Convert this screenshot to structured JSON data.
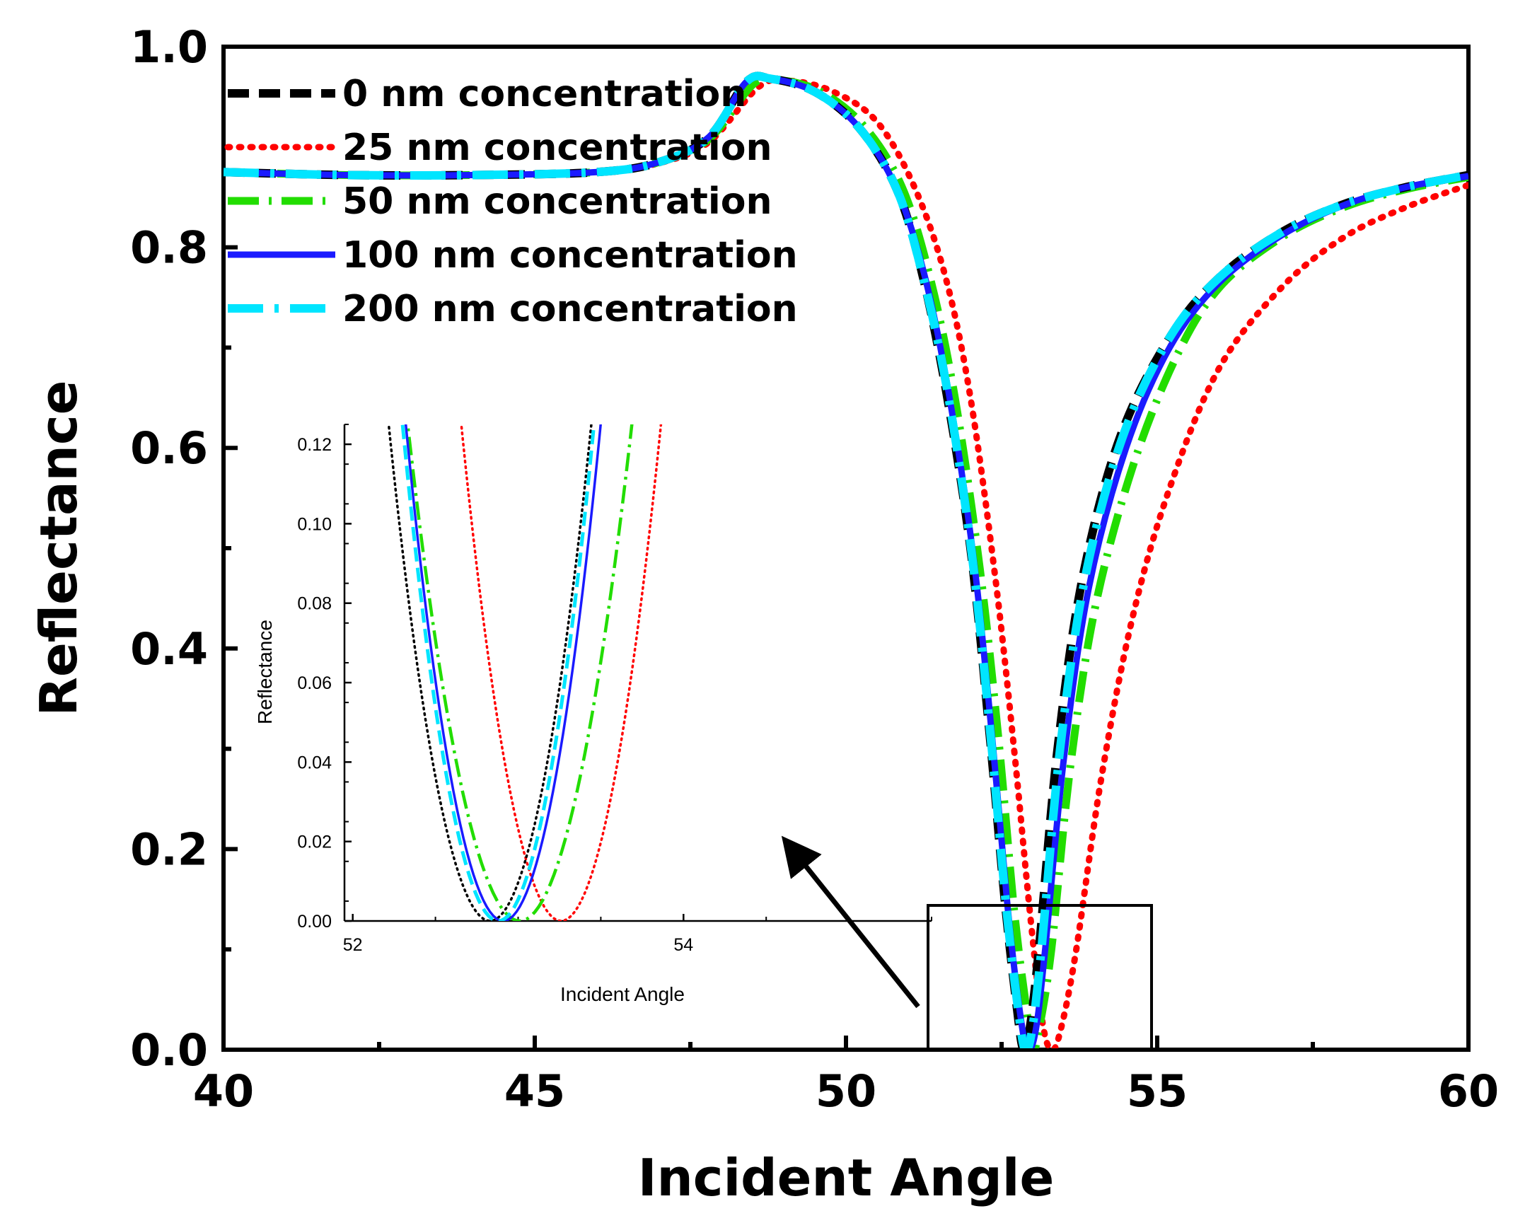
{
  "chart_data": [
    {
      "id": "main",
      "type": "line",
      "xlabel": "Incident Angle",
      "ylabel": "Reflectance",
      "xlim": [
        40,
        60
      ],
      "ylim": [
        0.0,
        1.0
      ],
      "xticks": [
        40,
        45,
        50,
        55,
        60
      ],
      "xtick_labels": [
        "40",
        "45",
        "50",
        "55",
        "60"
      ],
      "yticks": [
        0.0,
        0.2,
        0.4,
        0.6,
        0.8,
        1.0
      ],
      "ytick_labels": [
        "0.0",
        "0.2",
        "0.4",
        "0.6",
        "0.8",
        "1.0"
      ],
      "legend_position": "top-left",
      "grid": false,
      "series": [
        {
          "name": "0 nm concentration",
          "color": "#000000",
          "style": "dashed",
          "x": [
            40,
            42,
            44,
            46,
            47,
            47.8,
            48.4,
            48.8,
            49.5,
            50.2,
            50.8,
            51.2,
            51.6,
            52.0,
            52.3,
            52.55,
            52.75,
            52.85,
            52.95,
            53.1,
            53.4,
            53.8,
            54.4,
            55.2,
            56,
            57,
            58,
            59,
            60
          ],
          "y": [
            0.875,
            0.872,
            0.872,
            0.875,
            0.885,
            0.91,
            0.965,
            0.968,
            0.955,
            0.92,
            0.86,
            0.78,
            0.66,
            0.5,
            0.32,
            0.15,
            0.04,
            0.0,
            0.02,
            0.1,
            0.3,
            0.47,
            0.61,
            0.71,
            0.77,
            0.815,
            0.843,
            0.86,
            0.872
          ]
        },
        {
          "name": "25 nm concentration",
          "color": "#ff0000",
          "style": "dotted",
          "x": [
            40,
            42,
            44,
            46,
            47,
            47.8,
            48.6,
            49.1,
            49.8,
            50.5,
            51.1,
            51.6,
            52.0,
            52.4,
            52.7,
            52.95,
            53.15,
            53.3,
            53.45,
            53.7,
            54.1,
            54.6,
            55.2,
            56,
            57,
            58,
            59,
            60
          ],
          "y": [
            0.875,
            0.872,
            0.872,
            0.875,
            0.884,
            0.905,
            0.96,
            0.966,
            0.955,
            0.925,
            0.86,
            0.77,
            0.65,
            0.47,
            0.3,
            0.14,
            0.03,
            0.0,
            0.02,
            0.1,
            0.27,
            0.43,
            0.56,
            0.68,
            0.76,
            0.81,
            0.84,
            0.862
          ]
        },
        {
          "name": "50 nm concentration",
          "color": "#22dd00",
          "style": "dashdot",
          "x": [
            40,
            42,
            44,
            46,
            47,
            47.8,
            48.5,
            48.9,
            49.6,
            50.3,
            50.9,
            51.35,
            51.75,
            52.15,
            52.45,
            52.7,
            52.9,
            53.0,
            53.1,
            53.3,
            53.6,
            54.0,
            54.6,
            55.3,
            56,
            57,
            58,
            59,
            60
          ],
          "y": [
            0.875,
            0.872,
            0.872,
            0.875,
            0.885,
            0.908,
            0.962,
            0.967,
            0.955,
            0.92,
            0.86,
            0.77,
            0.65,
            0.48,
            0.31,
            0.14,
            0.04,
            0.0,
            0.02,
            0.1,
            0.28,
            0.44,
            0.58,
            0.69,
            0.76,
            0.81,
            0.84,
            0.858,
            0.87
          ]
        },
        {
          "name": "100 nm concentration",
          "color": "#1a1aff",
          "style": "solid",
          "x": [
            40,
            42,
            44,
            46,
            47,
            47.8,
            48.4,
            48.8,
            49.5,
            50.2,
            50.8,
            51.25,
            51.65,
            52.05,
            52.35,
            52.6,
            52.8,
            52.92,
            53.05,
            53.2,
            53.5,
            53.9,
            54.5,
            55.2,
            56,
            57,
            58,
            59,
            60
          ],
          "y": [
            0.875,
            0.872,
            0.872,
            0.875,
            0.885,
            0.91,
            0.965,
            0.968,
            0.955,
            0.92,
            0.86,
            0.775,
            0.655,
            0.49,
            0.31,
            0.14,
            0.035,
            0.0,
            0.02,
            0.1,
            0.29,
            0.46,
            0.6,
            0.7,
            0.765,
            0.812,
            0.842,
            0.86,
            0.871
          ]
        },
        {
          "name": "200 nm concentration",
          "color": "#00e5ff",
          "style": "longdash",
          "x": [
            40,
            42,
            44,
            46,
            47,
            47.8,
            48.4,
            48.8,
            49.5,
            50.2,
            50.8,
            51.2,
            51.62,
            52.02,
            52.32,
            52.57,
            52.77,
            52.88,
            52.99,
            53.14,
            53.44,
            53.84,
            54.44,
            55.2,
            56,
            57,
            58,
            59,
            60
          ],
          "y": [
            0.875,
            0.872,
            0.872,
            0.875,
            0.885,
            0.91,
            0.965,
            0.968,
            0.955,
            0.92,
            0.86,
            0.78,
            0.66,
            0.495,
            0.315,
            0.145,
            0.038,
            0.0,
            0.02,
            0.1,
            0.3,
            0.47,
            0.61,
            0.71,
            0.77,
            0.815,
            0.843,
            0.86,
            0.872
          ]
        }
      ],
      "annotation": "rectangle around the resonance minimum (approx. x 51.3–54.9, y 0.0–0.145) with an arrow pointing to the inset"
    },
    {
      "id": "inset",
      "type": "line",
      "xlabel": "Incident Angle",
      "ylabel": "Reflectance",
      "xlim": [
        51.95,
        55.5
      ],
      "ylim": [
        0.0,
        0.125
      ],
      "xticks": [
        52,
        54
      ],
      "xtick_labels": [
        "52",
        "54"
      ],
      "yticks": [
        0.0,
        0.02,
        0.04,
        0.06,
        0.08,
        0.1,
        0.12
      ],
      "ytick_labels": [
        "0.00",
        "0.02",
        "0.04",
        "0.06",
        "0.08",
        "0.10",
        "0.12"
      ],
      "series": [
        {
          "name": "0 nm concentration",
          "color": "#000000",
          "style": "dotted",
          "min_x": 52.83,
          "k": 0.333
        },
        {
          "name": "25 nm concentration",
          "color": "#ff0000",
          "style": "dotted",
          "min_x": 53.26,
          "k": 0.343
        },
        {
          "name": "50 nm concentration",
          "color": "#22dd00",
          "style": "dashdot",
          "min_x": 53.01,
          "k": 0.272
        },
        {
          "name": "100 nm concentration",
          "color": "#1a1aff",
          "style": "solid",
          "min_x": 52.91,
          "k": 0.36
        },
        {
          "name": "200 nm concentration",
          "color": "#00e5ff",
          "style": "longdash",
          "min_x": 52.88,
          "k": 0.373
        }
      ]
    }
  ]
}
